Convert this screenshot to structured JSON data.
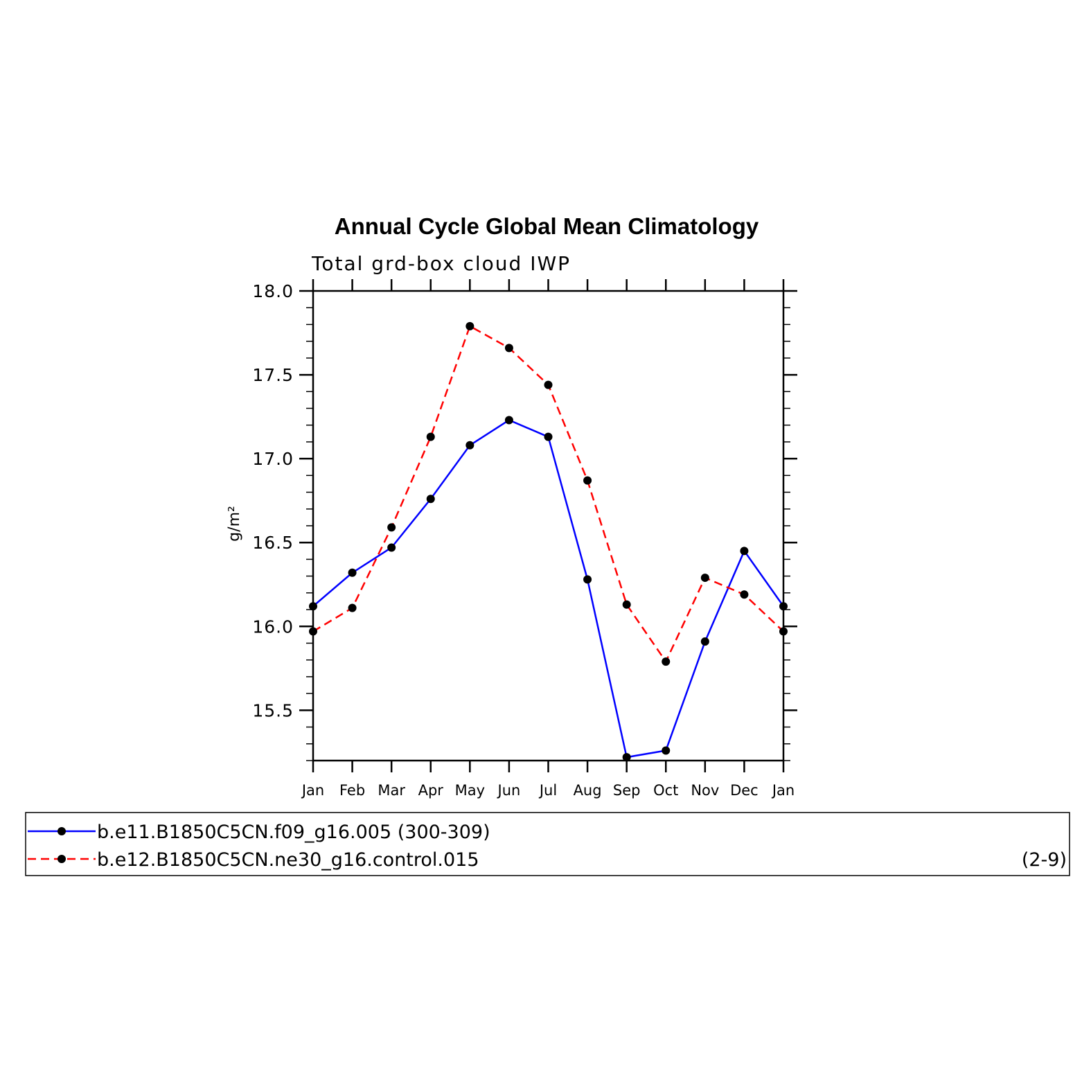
{
  "chart_data": {
    "type": "line",
    "title": "Annual Cycle Global Mean Climatology",
    "subtitle": "Total grd-box cloud IWP",
    "ylabel": "g/m²",
    "xlabel": "",
    "categories": [
      "Jan",
      "Feb",
      "Mar",
      "Apr",
      "May",
      "Jun",
      "Jul",
      "Aug",
      "Sep",
      "Oct",
      "Nov",
      "Dec",
      "Jan"
    ],
    "ylim": [
      15.2,
      18.0
    ],
    "yticks": [
      "15.5",
      "16.0",
      "16.5",
      "17.0",
      "17.5",
      "18.0"
    ],
    "ytick_values": [
      15.5,
      16.0,
      16.5,
      17.0,
      17.5,
      18.0
    ],
    "grid": false,
    "legend_position": "bottom",
    "series": [
      {
        "name": "b.e11.B1850C5CN.f09_g16.005 (300-309)",
        "color": "#0000ff",
        "line_style": "solid",
        "values": [
          16.12,
          16.32,
          16.47,
          16.76,
          17.08,
          17.23,
          17.13,
          16.28,
          15.22,
          15.26,
          15.91,
          16.45,
          16.12
        ]
      },
      {
        "name": "b.e12.B1850C5CN.ne30_g16.control.015",
        "name_suffix": "(2-9)",
        "color": "#ff0000",
        "line_style": "dashed",
        "values": [
          15.97,
          16.11,
          16.59,
          17.13,
          17.79,
          17.66,
          17.44,
          16.87,
          16.13,
          15.79,
          16.29,
          16.19,
          15.97
        ]
      }
    ],
    "marker_color": "#000000"
  }
}
